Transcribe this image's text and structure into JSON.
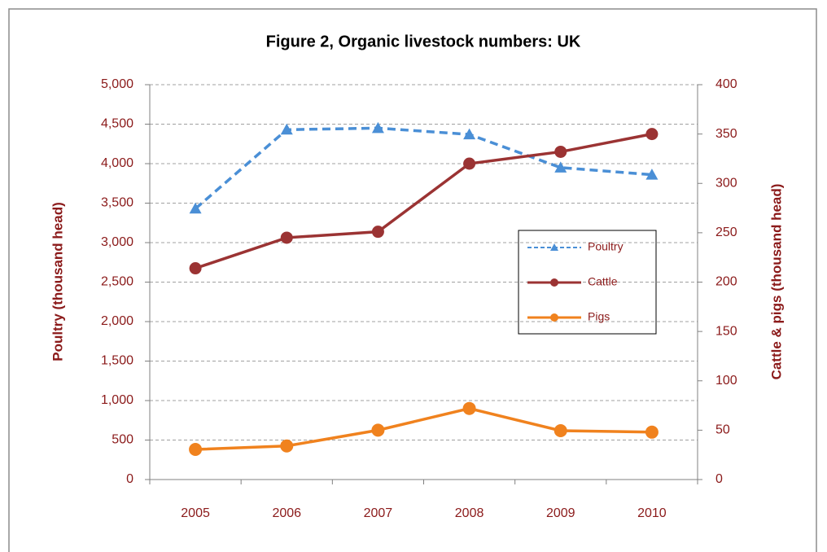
{
  "chart_data": {
    "type": "line",
    "title": "Figure 2, Organic livestock numbers: UK",
    "ylabel": "Poultry (thousand head)",
    "y2label": "Cattle & pigs (thousand head)",
    "categories": [
      "2005",
      "2006",
      "2007",
      "2008",
      "2009",
      "2010"
    ],
    "series": [
      {
        "name": "Poultry",
        "color": "#4a8fd6",
        "values": [
          3430,
          4430,
          4450,
          4370,
          3950,
          3860
        ]
      },
      {
        "name": "Cattle",
        "color": "#9b3333",
        "axis": "y2",
        "values": [
          214,
          245,
          251,
          320,
          332,
          350
        ]
      },
      {
        "name": "Pigs",
        "color": "#f0821e",
        "axis": "y2",
        "values": [
          30.5,
          34,
          50,
          72,
          49.5,
          48
        ]
      }
    ],
    "ylim": [
      0,
      5000
    ],
    "yticks": [
      0,
      500,
      {
        "value": 1000,
        "label": "1,000"
      },
      {
        "value": 1500,
        "label": "1,500"
      },
      {
        "value": 2000,
        "label": "2,000"
      },
      {
        "value": 2500,
        "label": "2,500"
      },
      {
        "value": 3000,
        "label": "3,000"
      },
      {
        "value": 3500,
        "label": "3,500"
      },
      {
        "value": 4000,
        "label": "4,000"
      },
      {
        "value": 4500,
        "label": "4,500"
      },
      {
        "value": 5000,
        "label": "5,000"
      }
    ],
    "y2lim": [
      0,
      400
    ],
    "y2ticks": [
      0,
      50,
      100,
      150,
      200,
      250,
      300,
      350,
      400
    ],
    "grid": true
  }
}
